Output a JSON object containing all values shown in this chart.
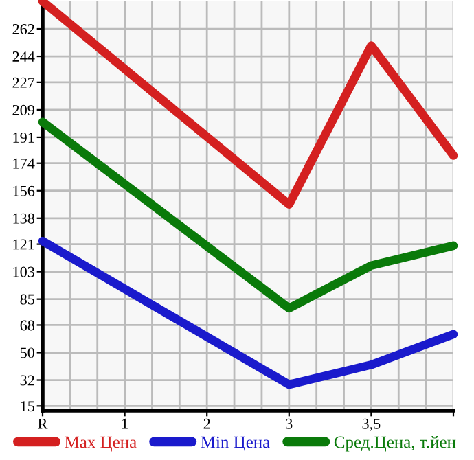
{
  "chart_data": {
    "type": "line",
    "categories": [
      "R",
      "1",
      "2",
      "3",
      "3,5",
      null
    ],
    "series": [
      {
        "name": "Max Цена",
        "color": "#d42020",
        "values": [
          280,
          null,
          null,
          147,
          251,
          179
        ]
      },
      {
        "name": "Min Цена",
        "color": "#1a1acc",
        "values": [
          123,
          null,
          null,
          29,
          42,
          62
        ]
      },
      {
        "name": "Сред.Цена, т.йен",
        "color": "#0a7a0a",
        "values": [
          201,
          null,
          null,
          79,
          107,
          120
        ]
      }
    ],
    "ylim": [
      12,
      280
    ],
    "yticks": [
      15,
      32,
      50,
      68,
      85,
      103,
      121,
      138,
      156,
      174,
      191,
      209,
      227,
      244,
      262
    ],
    "grid": true,
    "legend": "bottom",
    "marker": "none",
    "line_style": "solid"
  }
}
